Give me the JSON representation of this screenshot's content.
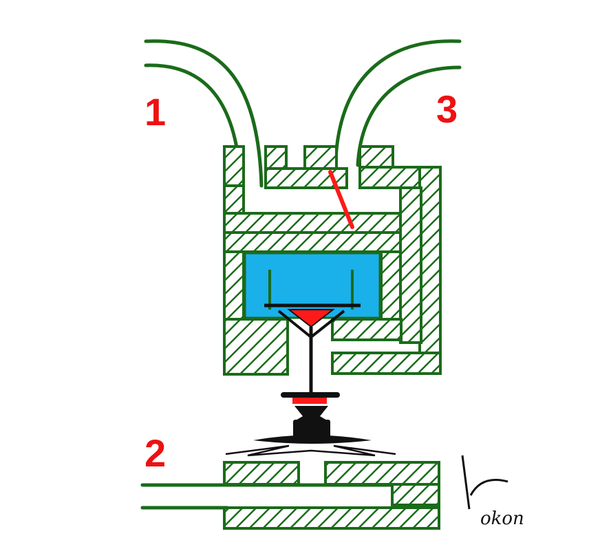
{
  "diagram": {
    "port_labels": {
      "port_1": "1",
      "port_2": "2",
      "port_3": "3"
    },
    "signature": "Kokon",
    "colors": {
      "body_outline": "#1a6b1a",
      "hatch": "#1a6b1a",
      "fluid": "#1ab0ea",
      "red_parts": "#ff1a1a",
      "stem": "#111111",
      "label": "#ee1111",
      "background": "#ffffff"
    }
  }
}
